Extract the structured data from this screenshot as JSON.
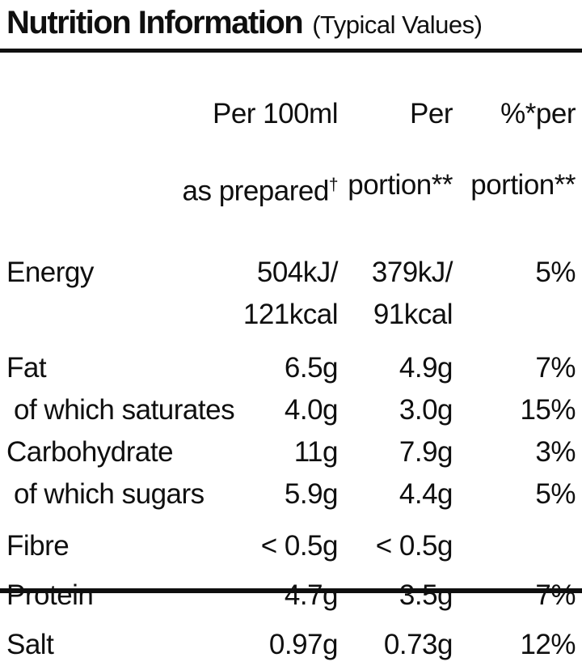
{
  "title": {
    "main": "Nutrition Information",
    "suffix": "(Typical Values)"
  },
  "table": {
    "columns": [
      {
        "id": "per-100ml",
        "line1": "Per 100ml",
        "line2": "as prepared",
        "line2_sup": "†"
      },
      {
        "id": "per-portion",
        "line1": "Per",
        "line2": "portion**",
        "line2_sup": ""
      },
      {
        "id": "percent-per-portion",
        "line1": "%*per",
        "line2": "portion**",
        "line2_sup": ""
      }
    ],
    "rows": [
      {
        "label": "Energy",
        "per_100ml": "504kJ/\n121kcal",
        "per_portion": "379kJ/\n91kcal",
        "percent_per_portion": "5%",
        "indent": false
      },
      {
        "label": "Fat",
        "per_100ml": "6.5g",
        "per_portion": "4.9g",
        "percent_per_portion": "7%",
        "indent": false
      },
      {
        "label": "of which saturates",
        "per_100ml": "4.0g",
        "per_portion": "3.0g",
        "percent_per_portion": "15%",
        "indent": true
      },
      {
        "label": "Carbohydrate",
        "per_100ml": "11g",
        "per_portion": "7.9g",
        "percent_per_portion": "3%",
        "indent": false
      },
      {
        "label": "of which sugars",
        "per_100ml": "5.9g",
        "per_portion": "4.4g",
        "percent_per_portion": "5%",
        "indent": true
      },
      {
        "label": "Fibre",
        "per_100ml": "< 0.5g",
        "per_portion": "< 0.5g",
        "percent_per_portion": "",
        "indent": false
      },
      {
        "label": "Protein",
        "per_100ml": "4.7g",
        "per_portion": "3.5g",
        "percent_per_portion": "7%",
        "indent": false
      },
      {
        "label": "Salt",
        "per_100ml": "0.97g",
        "per_portion": "0.73g",
        "percent_per_portion": "12%",
        "indent": false
      }
    ]
  },
  "colors": {
    "text": "#0f0f0f",
    "background": "#ffffff",
    "rule": "#0f0f0f"
  }
}
